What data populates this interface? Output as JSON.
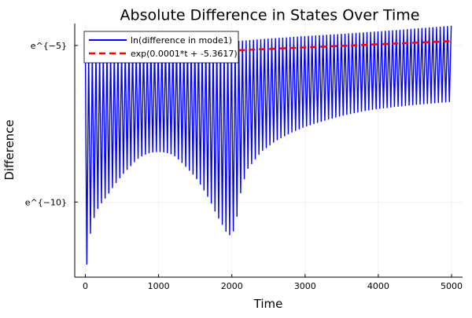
{
  "chart_data": {
    "type": "line",
    "title": "Absolute Difference in States Over Time",
    "xlabel": "Time",
    "ylabel": "Difference",
    "xlim": [
      -145,
      5150
    ],
    "ylim": [
      -12.4,
      -4.3
    ],
    "x_ticks": [
      0,
      1000,
      2000,
      3000,
      4000,
      5000
    ],
    "x_tick_labels": [
      "0",
      "1000",
      "2000",
      "3000",
      "4000",
      "5000"
    ],
    "y_ticks": [
      -10,
      -5
    ],
    "y_tick_labels": [
      "e^{−10}",
      "e^{−5}"
    ],
    "grid": true,
    "legend_position": "top-left",
    "oscillation_period": 50,
    "series": [
      {
        "name": "ln(difference in mode1)",
        "style": "solid",
        "color": "#0000ff",
        "upper_envelope": {
          "x": [
            0,
            500,
            1000,
            1500,
            2000,
            2500,
            3000,
            3500,
            4000,
            4500,
            5000
          ],
          "y": [
            -5.23,
            -5.15,
            -5.04,
            -4.98,
            -4.87,
            -4.78,
            -4.7,
            -4.63,
            -4.55,
            -4.46,
            -4.37
          ]
        },
        "lower_envelope": {
          "x": [
            20,
            50,
            100,
            150,
            200,
            300,
            400,
            500,
            600,
            700,
            800,
            900,
            1000,
            1100,
            1200,
            1300,
            1400,
            1500,
            1600,
            1700,
            1800,
            1900,
            1950,
            2000,
            2050,
            2100,
            2200,
            2400,
            2600,
            2800,
            3000,
            3200,
            3500,
            3800,
            4000,
            4200,
            4500,
            4800,
            5000
          ],
          "y": [
            -12.0,
            -11.25,
            -10.65,
            -10.3,
            -10.1,
            -9.8,
            -9.45,
            -9.15,
            -8.9,
            -8.65,
            -8.5,
            -8.42,
            -8.4,
            -8.42,
            -8.5,
            -8.7,
            -8.95,
            -9.2,
            -9.55,
            -9.95,
            -10.45,
            -10.85,
            -11.1,
            -11.0,
            -10.85,
            -9.9,
            -9.0,
            -8.4,
            -8.05,
            -7.8,
            -7.6,
            -7.45,
            -7.25,
            -7.1,
            -7.03,
            -6.97,
            -6.9,
            -6.84,
            -6.8
          ]
        }
      },
      {
        "name": "exp(0.0001*t + -5.3617)",
        "style": "dashed",
        "color": "#ff0000",
        "x": [
          0,
          5000
        ],
        "y": [
          -5.3617,
          -4.8617
        ]
      }
    ]
  }
}
